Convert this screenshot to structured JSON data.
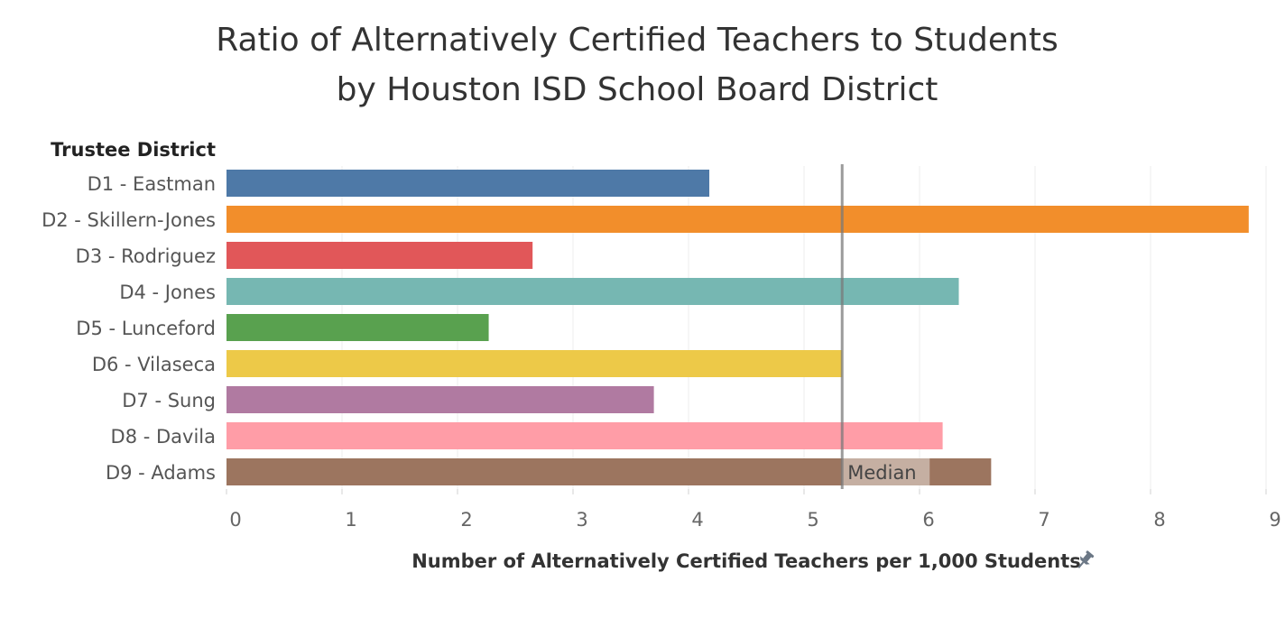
{
  "chart_data": {
    "type": "bar",
    "orientation": "horizontal",
    "title": "Ratio of Alternatively Certified Teachers to Students",
    "subtitle": "by Houston ISD School Board District",
    "row_header": "Trustee District",
    "xlabel": "Number of Alternatively Certified Teachers per 1,000 Students",
    "xlim": [
      0,
      9
    ],
    "x_ticks": [
      0,
      1,
      2,
      3,
      4,
      5,
      6,
      7,
      8,
      9
    ],
    "grid": true,
    "categories": [
      "D1 - Eastman",
      "D2 - Skillern-Jones",
      "D3 - Rodriguez",
      "D4 - Jones",
      "D5 - Lunceford",
      "D6 - Vilaseca",
      "D7 - Sung",
      "D8 - Davila",
      "D9 - Adams"
    ],
    "values": [
      4.18,
      8.85,
      2.65,
      6.34,
      2.27,
      5.33,
      3.7,
      6.2,
      6.62
    ],
    "colors": [
      "#4e79a7",
      "#f28e2b",
      "#e15759",
      "#76b7b2",
      "#59a14f",
      "#edc948",
      "#b07aa1",
      "#ff9da7",
      "#9c755f"
    ],
    "reference_line": {
      "label": "Median",
      "value": 5.33
    }
  },
  "icons": {
    "pin": "pin-icon"
  }
}
